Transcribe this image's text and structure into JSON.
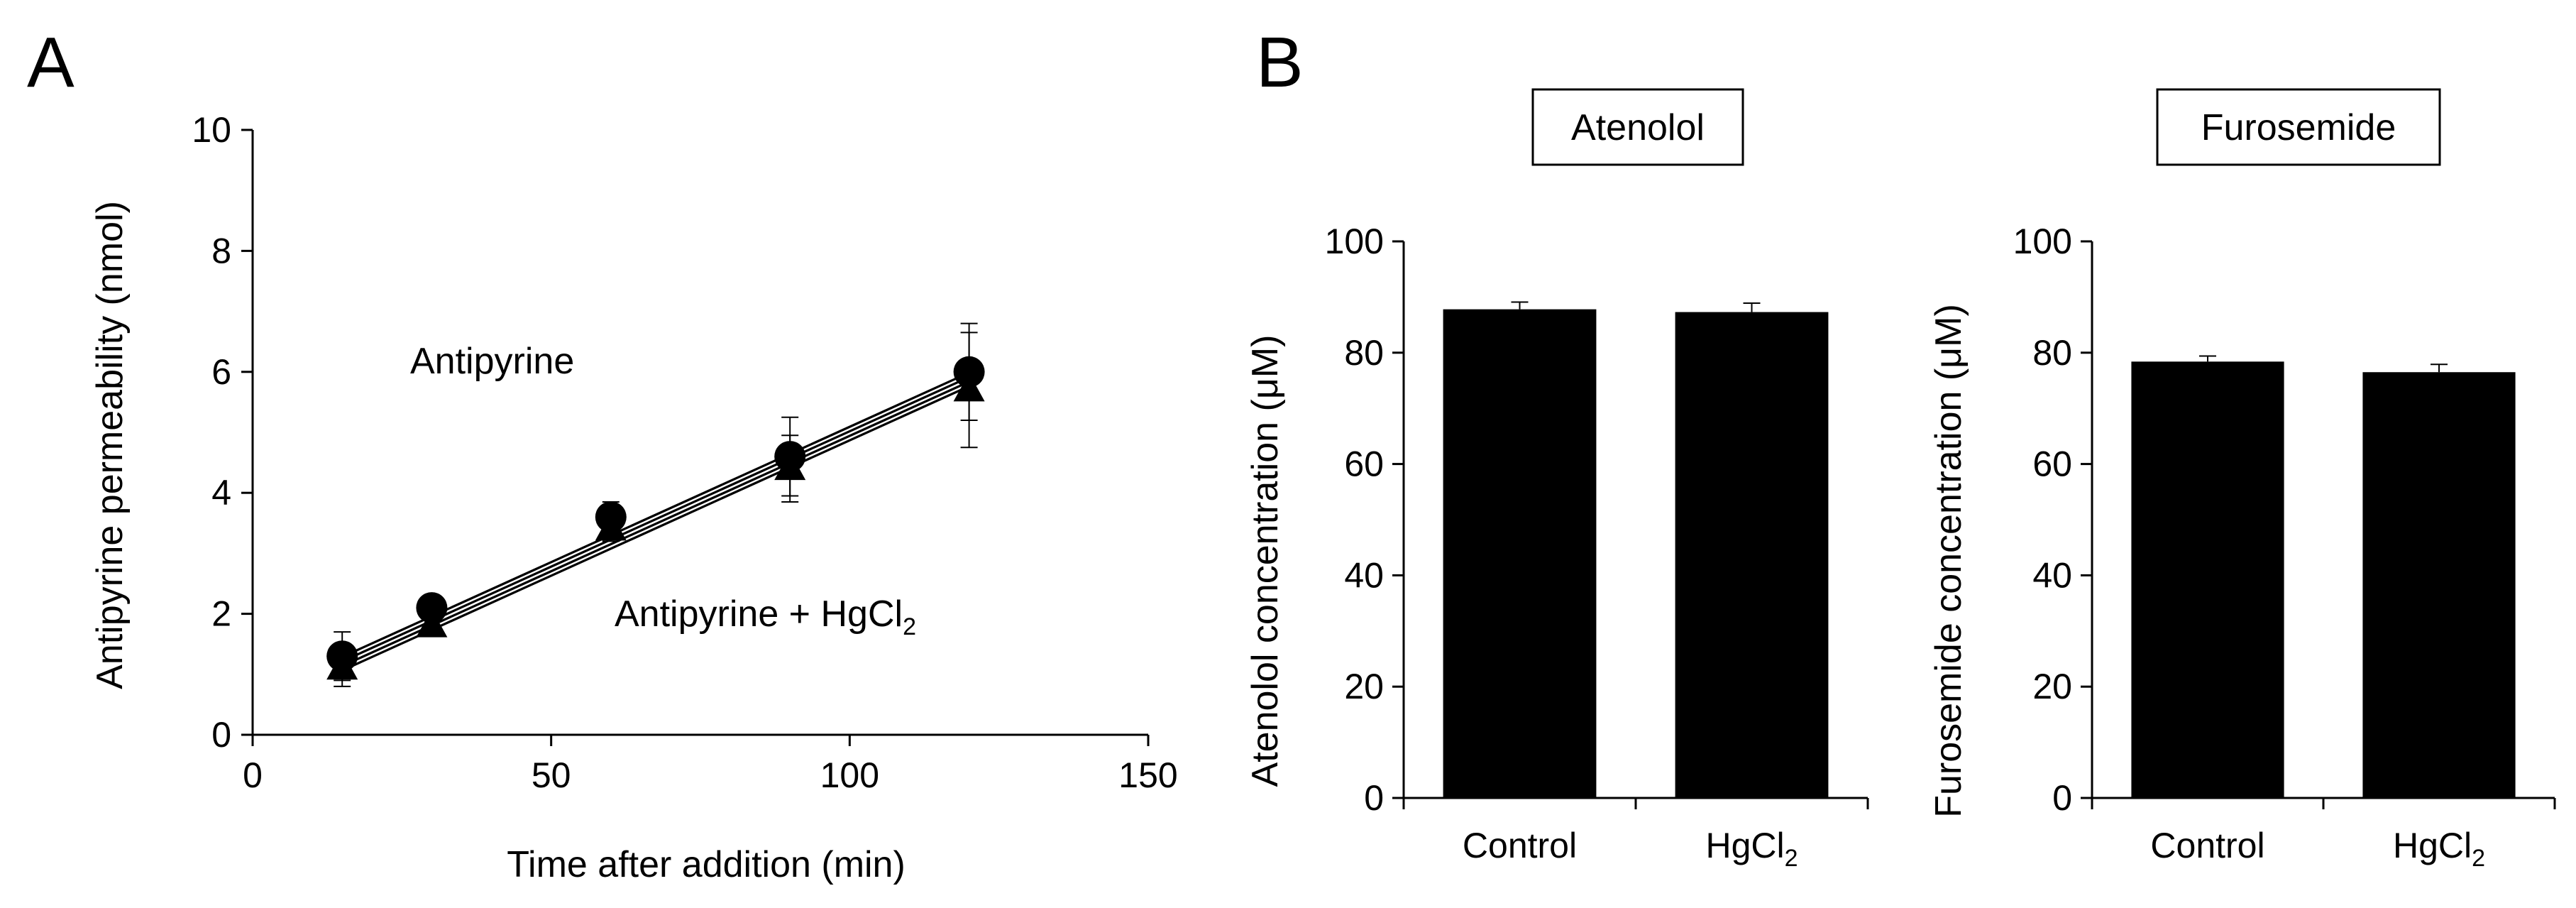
{
  "panel_labels": {
    "a": "A",
    "b": "B"
  },
  "chart_data": [
    {
      "id": "A",
      "type": "line",
      "title": "",
      "xlabel": "Time after addition (min)",
      "ylabel": "Antipyrine  permeability (nmol)",
      "xlim": [
        0,
        150
      ],
      "ylim": [
        0,
        10
      ],
      "xticks": [
        0,
        50,
        100,
        150
      ],
      "yticks": [
        0,
        2,
        4,
        6,
        8,
        10
      ],
      "series": [
        {
          "name": "Antipyrine",
          "marker": "circle",
          "x": [
            15,
            30,
            60,
            90,
            120
          ],
          "values": [
            1.3,
            2.1,
            3.6,
            4.6,
            6.0
          ],
          "errors": [
            0.4,
            0.1,
            0.25,
            0.65,
            0.8
          ],
          "fit": [
            1.25,
            5.95
          ]
        },
        {
          "name": "Antipyrine + HgCl2",
          "marker": "triangle",
          "x": [
            15,
            30,
            60,
            90,
            120
          ],
          "values": [
            1.1,
            1.8,
            3.4,
            4.4,
            5.7
          ],
          "errors": [
            0.3,
            0.15,
            0.2,
            0.55,
            0.95
          ],
          "fit": [
            1.1,
            5.8
          ]
        }
      ],
      "annotations": {
        "antipyrine": "Antipyrine",
        "hgcl2_main": "Antipyrine + HgCl",
        "hgcl2_sub": "2"
      }
    },
    {
      "id": "B-atenolol",
      "type": "bar",
      "title": "Atenolol",
      "xlabel": "",
      "ylabel": "Atenolol concentration (μM)",
      "ylim": [
        0,
        100
      ],
      "yticks": [
        0,
        20,
        40,
        60,
        80,
        100
      ],
      "categories": [
        {
          "main": "Control",
          "sub": ""
        },
        {
          "main": "HgCl",
          "sub": "2"
        }
      ],
      "values": [
        87.8,
        87.3
      ],
      "errors": [
        1.3,
        1.6
      ]
    },
    {
      "id": "B-furosemide",
      "type": "bar",
      "title": "Furosemide",
      "xlabel": "",
      "ylabel": "Furosemide concentration (μM)",
      "ylim": [
        0,
        100
      ],
      "yticks": [
        0,
        20,
        40,
        60,
        80,
        100
      ],
      "categories": [
        {
          "main": "Control",
          "sub": ""
        },
        {
          "main": "HgCl",
          "sub": "2"
        }
      ],
      "values": [
        78.4,
        76.5
      ],
      "errors": [
        1.0,
        1.4
      ]
    }
  ]
}
